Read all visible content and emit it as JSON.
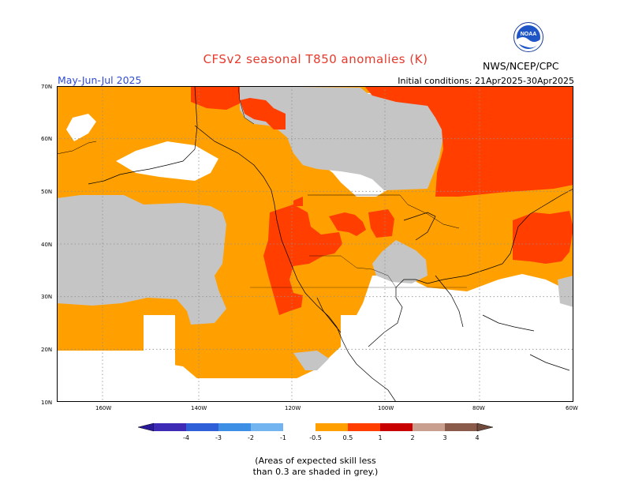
{
  "title": "CFSv2 seasonal T850 anomalies (K)",
  "season": "May-Jun-Jul 2025",
  "initial_conditions": "Initial conditions: 21Apr2025-30Apr2025",
  "agency": "NWS/NCEP/CPC",
  "logo_text": "NOAA",
  "map": {
    "lat_labels": [
      "70N",
      "60N",
      "50N",
      "40N",
      "30N",
      "20N",
      "10N"
    ],
    "lon_labels": [
      "160W",
      "140W",
      "120W",
      "100W",
      "80W",
      "60W"
    ]
  },
  "legend": {
    "ticks": [
      "-4",
      "-3",
      "-2",
      "-1",
      "-0.5",
      "0.5",
      "1",
      "2",
      "3",
      "4"
    ],
    "colors": [
      "#3d2bb5",
      "#2f5fd8",
      "#3c8fe5",
      "#71b4f0",
      "#ffffff",
      "#ff9f00",
      "#ff3e00",
      "#c80000",
      "#c9a090",
      "#8a5a4a"
    ]
  },
  "footnote": {
    "line1": "(Areas of expected skill less",
    "line2": "than 0.3 are shaded in grey.)"
  }
}
